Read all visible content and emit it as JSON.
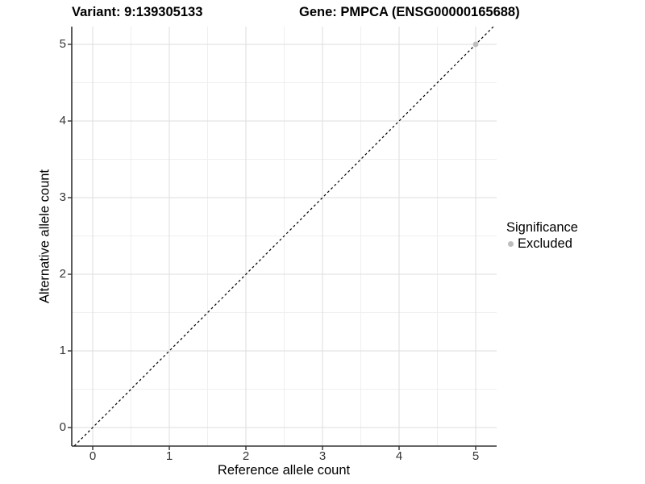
{
  "chart_data": {
    "type": "scatter",
    "titles": [
      "Variant: 9:139305133",
      "Gene: PMPCA (ENSG00000165688)"
    ],
    "xlabel": "Reference allele count",
    "ylabel": "Alternative allele count",
    "x_ticks": [
      "0",
      "1",
      "2",
      "3",
      "4",
      "5"
    ],
    "y_ticks": [
      "0",
      "1",
      "2",
      "3",
      "4",
      "5"
    ],
    "x_tick_values": [
      0,
      1,
      2,
      3,
      4,
      5
    ],
    "y_tick_values": [
      0,
      1,
      2,
      3,
      4,
      5
    ],
    "x_minor_values": [
      0.5,
      1.5,
      2.5,
      3.5,
      4.5
    ],
    "y_minor_values": [
      0.5,
      1.5,
      2.5,
      3.5,
      4.5
    ],
    "xlim": [
      -0.24,
      5.27
    ],
    "ylim": [
      -0.24,
      5.23
    ],
    "grid": "major+minor",
    "legend_position": "right",
    "reference_line": {
      "slope": 1,
      "intercept": 0,
      "style": "dashed",
      "color": "#000000"
    },
    "series": [
      {
        "name": "Excluded",
        "color": "#bdbdbd",
        "points": [
          [
            5,
            5
          ]
        ]
      }
    ],
    "legend": {
      "title": "Significance",
      "entries": [
        {
          "label": "Excluded",
          "color": "#bdbdbd",
          "marker": "circle"
        }
      ]
    }
  },
  "colors": {
    "background": "#ffffff",
    "grid_major": "#dedede",
    "grid_minor": "#efefef",
    "axis_line": "#333333",
    "tick_text": "#333333",
    "title_text": "#000000",
    "excluded_point": "#bdbdbd"
  }
}
